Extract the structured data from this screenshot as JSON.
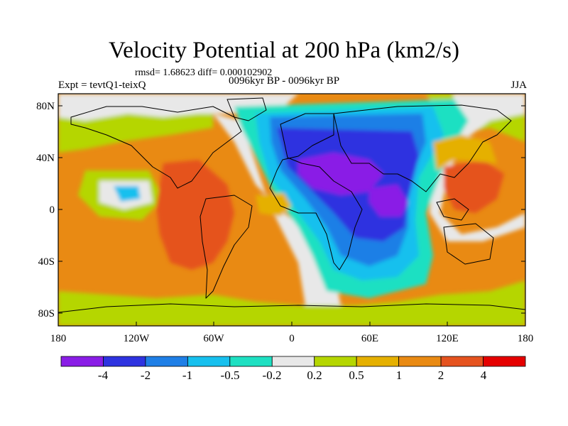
{
  "title": "Velocity Potential at 200 hPa (km2/s)",
  "stats": "rmsd= 1.68623 diff= 0.000102902",
  "experiment": "Expt = tevtQ1-teixQ",
  "period": "0096kyr BP - 0096kyr BP",
  "season": "JJA",
  "axes": {
    "lat_ticks": [
      "80N",
      "40N",
      "0",
      "40S",
      "80S"
    ],
    "lon_ticks": [
      "180",
      "120W",
      "60W",
      "0",
      "60E",
      "120E",
      "180"
    ]
  },
  "colorbar": {
    "labels": [
      "-4",
      "-2",
      "-1",
      "-0.5",
      "-0.2",
      "0.2",
      "0.5",
      "1",
      "2",
      "4"
    ],
    "colors": [
      "#8a1de6",
      "#2e33e0",
      "#1f7fe6",
      "#17c0ee",
      "#1ee0c2",
      "#e8e8e8",
      "#b5d600",
      "#e5b000",
      "#e98a13",
      "#e5531f",
      "#e50000"
    ]
  },
  "colors": {
    "ocean_bg": "#e98a13",
    "coast": "#000000"
  }
}
